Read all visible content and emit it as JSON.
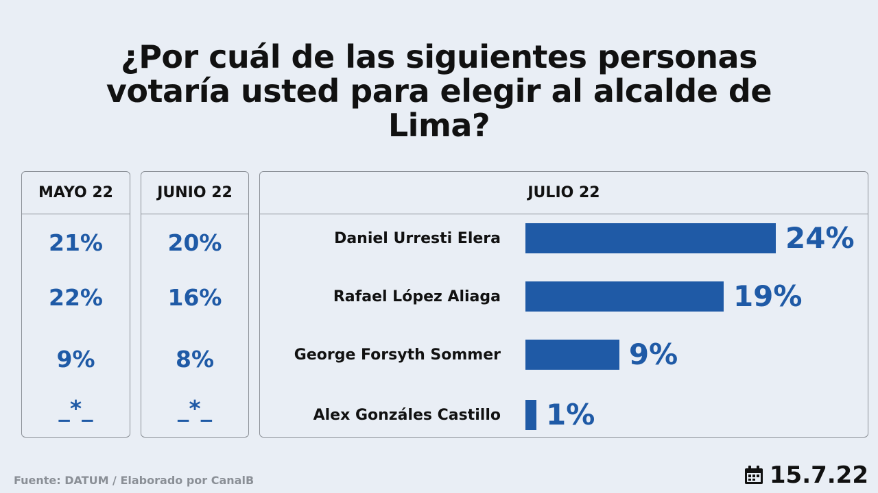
{
  "title": {
    "line1": "¿Por cuál de las siguientes personas",
    "line2": "votaría usted para elegir al alcalde de",
    "line3": "Lima?"
  },
  "columns": {
    "mayo": {
      "label": "MAYO 22",
      "values": [
        "21%",
        "22%",
        "9%",
        "_*_"
      ]
    },
    "junio": {
      "label": "JUNIO 22",
      "values": [
        "20%",
        "16%",
        "8%",
        "_*_"
      ]
    },
    "julio": {
      "label": "JULIO 22"
    }
  },
  "chart_data": {
    "type": "bar",
    "orientation": "horizontal",
    "title": "JULIO 22",
    "categories": [
      "Daniel Urresti Elera",
      "Rafael López Aliaga",
      "George Forsyth Sommer",
      "Alex Gonzáles Castillo"
    ],
    "values": [
      24,
      19,
      9,
      1
    ],
    "value_labels": [
      "24%",
      "19%",
      "9%",
      "1%"
    ],
    "xlim": [
      0,
      24
    ],
    "color": "#1f5aa6",
    "grid": false,
    "previous": {
      "MAYO 22": [
        "21%",
        "22%",
        "9%",
        "_*_"
      ],
      "JUNIO 22": [
        "20%",
        "16%",
        "8%",
        "_*_"
      ]
    }
  },
  "footer": {
    "source": "Fuente: DATUM / Elaborado por CanalB",
    "date": "15.7.22",
    "date_icon": "calendar-icon"
  },
  "colors": {
    "accent": "#1f5aa6",
    "background": "#e9eef5",
    "border": "#8a8f96"
  }
}
